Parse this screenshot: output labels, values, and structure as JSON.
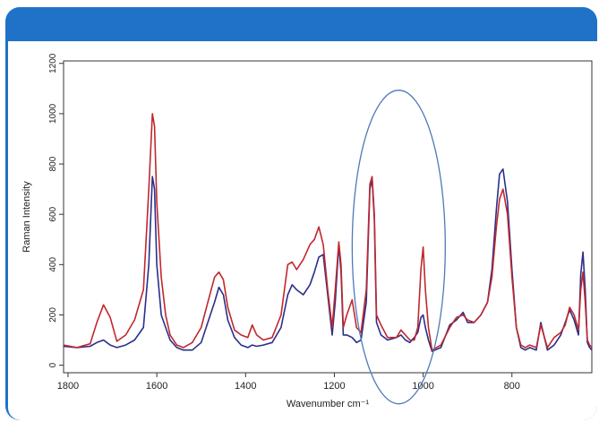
{
  "chart_data": {
    "type": "line",
    "xlabel": "Wavenumber cm⁻¹",
    "ylabel": "Raman Intensity",
    "xlim": [
      1810,
      620
    ],
    "ylim": [
      -30,
      1210
    ],
    "x_ticks": [
      1800,
      1600,
      1400,
      1200,
      1000,
      800
    ],
    "y_ticks": [
      0,
      200,
      400,
      600,
      800,
      1000,
      1200
    ],
    "grid": false,
    "series": [
      {
        "color": "#c0282d",
        "x": [
          1810,
          1780,
          1750,
          1735,
          1720,
          1705,
          1690,
          1670,
          1650,
          1630,
          1618,
          1610,
          1605,
          1600,
          1590,
          1580,
          1570,
          1555,
          1540,
          1520,
          1500,
          1485,
          1470,
          1460,
          1450,
          1440,
          1425,
          1410,
          1395,
          1385,
          1375,
          1360,
          1340,
          1320,
          1305,
          1295,
          1285,
          1270,
          1255,
          1245,
          1235,
          1225,
          1215,
          1205,
          1198,
          1190,
          1185,
          1180,
          1172,
          1160,
          1150,
          1140,
          1128,
          1120,
          1115,
          1110,
          1105,
          1095,
          1080,
          1060,
          1050,
          1040,
          1030,
          1020,
          1012,
          1005,
          1000,
          995,
          988,
          980,
          960,
          940,
          925,
          910,
          900,
          885,
          870,
          855,
          845,
          835,
          828,
          820,
          810,
          800,
          790,
          780,
          770,
          760,
          745,
          735,
          720,
          705,
          690,
          680,
          670,
          660,
          650,
          645,
          640,
          635,
          630,
          625,
          620
        ],
        "y": [
          80,
          70,
          85,
          170,
          240,
          190,
          95,
          120,
          180,
          300,
          700,
          1000,
          950,
          650,
          350,
          200,
          120,
          80,
          70,
          90,
          150,
          250,
          350,
          370,
          340,
          230,
          140,
          120,
          110,
          160,
          120,
          100,
          110,
          200,
          400,
          410,
          380,
          420,
          480,
          500,
          550,
          480,
          300,
          150,
          300,
          490,
          400,
          150,
          200,
          260,
          150,
          130,
          300,
          720,
          750,
          600,
          200,
          160,
          110,
          110,
          140,
          120,
          100,
          100,
          150,
          380,
          470,
          300,
          150,
          60,
          80,
          150,
          190,
          200,
          180,
          170,
          200,
          250,
          350,
          550,
          660,
          700,
          600,
          350,
          150,
          80,
          70,
          80,
          70,
          160,
          70,
          110,
          130,
          160,
          230,
          200,
          140,
          300,
          370,
          250,
          100,
          80,
          70
        ]
      },
      {
        "color": "#2a2f8a",
        "x": [
          1810,
          1780,
          1750,
          1735,
          1720,
          1705,
          1690,
          1670,
          1650,
          1630,
          1618,
          1610,
          1605,
          1600,
          1590,
          1580,
          1570,
          1555,
          1540,
          1520,
          1500,
          1485,
          1470,
          1460,
          1450,
          1440,
          1425,
          1410,
          1395,
          1385,
          1375,
          1360,
          1340,
          1320,
          1305,
          1295,
          1285,
          1270,
          1255,
          1245,
          1235,
          1225,
          1215,
          1205,
          1198,
          1190,
          1185,
          1180,
          1172,
          1160,
          1150,
          1140,
          1128,
          1120,
          1115,
          1110,
          1105,
          1095,
          1080,
          1060,
          1050,
          1040,
          1030,
          1020,
          1012,
          1005,
          1000,
          995,
          988,
          980,
          960,
          940,
          925,
          910,
          900,
          885,
          870,
          855,
          845,
          835,
          828,
          820,
          810,
          800,
          790,
          780,
          770,
          760,
          745,
          735,
          720,
          705,
          690,
          680,
          670,
          660,
          650,
          645,
          640,
          635,
          630,
          625,
          620
        ],
        "y": [
          75,
          70,
          75,
          90,
          100,
          80,
          70,
          80,
          100,
          150,
          400,
          750,
          700,
          400,
          200,
          150,
          100,
          70,
          60,
          60,
          90,
          170,
          250,
          310,
          280,
          180,
          110,
          80,
          70,
          80,
          75,
          80,
          90,
          150,
          280,
          320,
          300,
          280,
          320,
          370,
          430,
          440,
          280,
          120,
          250,
          480,
          370,
          120,
          120,
          110,
          90,
          100,
          250,
          700,
          740,
          580,
          170,
          120,
          100,
          110,
          120,
          100,
          90,
          110,
          130,
          190,
          200,
          150,
          100,
          55,
          70,
          160,
          180,
          210,
          170,
          170,
          200,
          250,
          380,
          620,
          760,
          780,
          650,
          380,
          150,
          70,
          60,
          70,
          60,
          170,
          60,
          80,
          120,
          170,
          220,
          180,
          120,
          360,
          450,
          300,
          90,
          70,
          60
        ]
      }
    ]
  }
}
